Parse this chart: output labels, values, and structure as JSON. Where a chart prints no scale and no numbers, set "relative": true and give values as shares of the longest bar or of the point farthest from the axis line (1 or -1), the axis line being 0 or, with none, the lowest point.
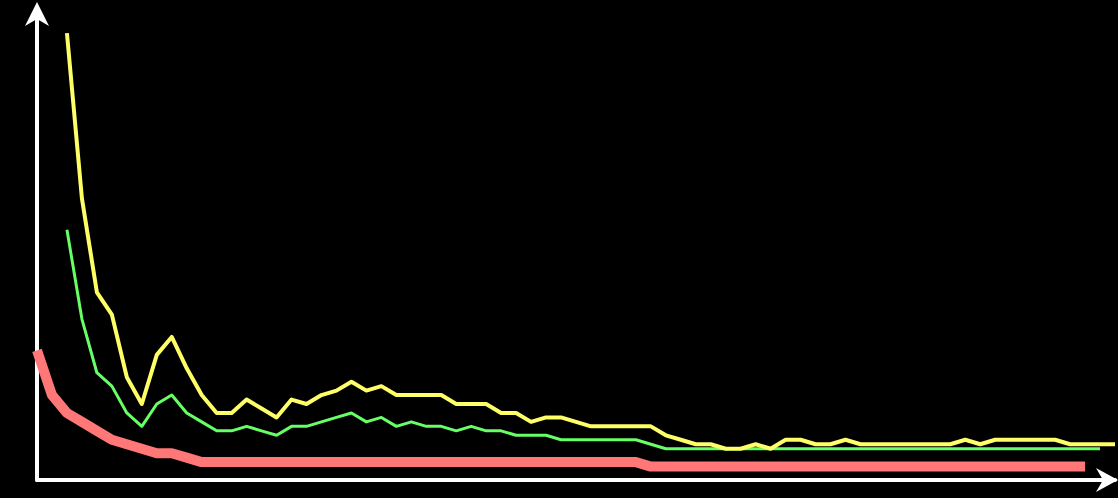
{
  "chart_data": {
    "type": "line",
    "relative": true,
    "marker": "none",
    "categories": [
      null,
      null,
      null,
      null,
      null,
      null,
      null,
      null,
      null,
      null,
      null,
      null,
      null,
      null,
      null,
      null,
      null,
      null,
      null,
      null,
      null,
      null,
      null,
      null,
      null,
      null,
      null,
      null,
      null,
      null,
      null,
      null,
      null,
      null,
      null,
      null,
      null,
      null,
      null,
      null,
      null,
      null,
      null,
      null,
      null,
      null,
      null,
      null,
      null,
      null,
      null,
      null,
      null,
      null,
      null,
      null,
      null,
      null,
      null,
      null,
      null,
      null,
      null,
      null,
      null,
      null,
      null,
      null,
      null,
      null,
      null,
      null,
      null
    ],
    "series": [
      {
        "color": "#ff7777",
        "values": [
          0.29,
          0.19,
          0.15,
          0.13,
          0.11,
          0.09,
          0.08,
          0.07,
          0.06,
          0.06,
          0.05,
          0.04,
          0.04,
          0.04,
          0.04,
          0.04,
          0.04,
          0.04,
          0.04,
          0.04,
          0.04,
          0.04,
          0.04,
          0.04,
          0.04,
          0.04,
          0.04,
          0.04,
          0.04,
          0.04,
          0.04,
          0.04,
          0.04,
          0.04,
          0.04,
          0.04,
          0.04,
          0.04,
          0.04,
          0.04,
          0.04,
          0.03,
          0.03,
          0.03,
          0.03,
          0.03,
          0.03,
          0.03,
          0.03,
          0.03,
          0.03,
          0.03,
          0.03,
          0.03,
          0.03,
          0.03,
          0.03,
          0.03,
          0.03,
          0.03,
          0.03,
          0.03,
          0.03,
          0.03,
          0.03,
          0.03,
          0.03,
          0.03,
          0.03,
          0.03,
          0.03,
          null,
          null
        ]
      },
      {
        "color": "#66ff66",
        "values": [
          null,
          null,
          0.56,
          0.36,
          0.24,
          0.21,
          0.15,
          0.12,
          0.17,
          0.19,
          0.15,
          0.13,
          0.11,
          0.11,
          0.12,
          0.11,
          0.1,
          0.12,
          0.12,
          0.13,
          0.14,
          0.15,
          0.13,
          0.14,
          0.12,
          0.13,
          0.12,
          0.12,
          0.11,
          0.12,
          0.11,
          0.11,
          0.1,
          0.1,
          0.1,
          0.09,
          0.09,
          0.09,
          0.09,
          0.09,
          0.09,
          0.08,
          0.07,
          0.07,
          0.07,
          0.07,
          0.07,
          0.07,
          0.07,
          0.07,
          0.07,
          0.07,
          0.07,
          0.07,
          0.07,
          0.07,
          0.07,
          0.07,
          0.07,
          0.07,
          0.07,
          0.07,
          0.07,
          0.07,
          0.07,
          0.07,
          0.07,
          0.07,
          0.07,
          0.07,
          0.07,
          0.07,
          null
        ]
      },
      {
        "color": "#ffff66",
        "values": [
          null,
          null,
          1,
          0.63,
          0.42,
          0.37,
          0.23,
          0.17,
          0.28,
          0.32,
          0.25,
          0.19,
          0.15,
          0.15,
          0.18,
          0.16,
          0.14,
          0.18,
          0.17,
          0.19,
          0.2,
          0.22,
          0.2,
          0.21,
          0.19,
          0.19,
          0.19,
          0.19,
          0.17,
          0.17,
          0.17,
          0.15,
          0.15,
          0.13,
          0.14,
          0.14,
          0.13,
          0.12,
          0.12,
          0.12,
          0.12,
          0.12,
          0.1,
          0.09,
          0.08,
          0.08,
          0.07,
          0.07,
          0.08,
          0.07,
          0.09,
          0.09,
          0.08,
          0.08,
          0.09,
          0.08,
          0.08,
          0.08,
          0.08,
          0.08,
          0.08,
          0.08,
          0.09,
          0.08,
          0.09,
          0.09,
          0.09,
          0.09,
          0.09,
          0.08,
          0.08,
          0.08,
          0.08
        ]
      }
    ]
  }
}
